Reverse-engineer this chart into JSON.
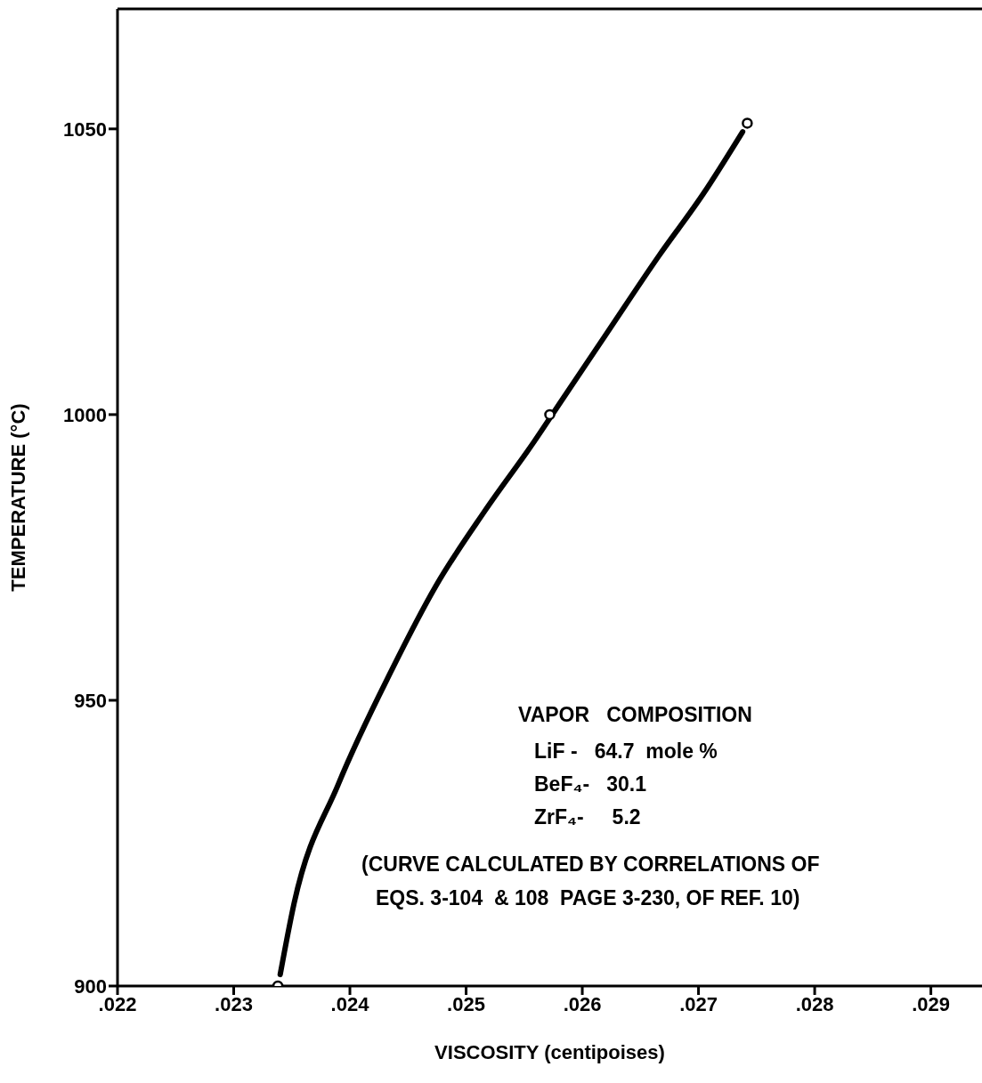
{
  "chart_data": {
    "type": "line",
    "xlabel": "VISCOSITY  (centipoises)",
    "ylabel": "TEMPERATURE   (°C)",
    "xlim": [
      0.022,
      0.02944
    ],
    "ylim": [
      900,
      1071
    ],
    "xticks": [
      {
        "value": 0.022,
        "label": ".022"
      },
      {
        "value": 0.023,
        "label": ".023"
      },
      {
        "value": 0.024,
        "label": ".024"
      },
      {
        "value": 0.025,
        "label": ".025"
      },
      {
        "value": 0.026,
        "label": ".026"
      },
      {
        "value": 0.027,
        "label": ".027"
      },
      {
        "value": 0.028,
        "label": ".028"
      },
      {
        "value": 0.029,
        "label": ".029"
      }
    ],
    "yticks": [
      900,
      950,
      1000,
      1050
    ],
    "series": [
      {
        "color": "#000000",
        "marker": "none",
        "line_style": "solid",
        "x": [
          0.0234,
          0.02352,
          0.0239,
          0.02436,
          0.02474,
          0.02516,
          0.02559,
          0.02582,
          0.0262,
          0.02666,
          0.02704,
          0.02738
        ],
        "values": [
          902,
          914.5,
          935.3,
          955.3,
          970,
          983.1,
          995.4,
          1002.4,
          1013.9,
          1027.8,
          1038.6,
          1049.5
        ]
      },
      {
        "type": "scatter",
        "color": "#000000",
        "marker": "circle",
        "x": [
          0.02338,
          0.02572,
          0.02742
        ],
        "values": [
          900,
          1000,
          1051
        ]
      }
    ],
    "annotations": [
      "VAPOR   COMPOSITION",
      "LiF -   64.7  mole %",
      "BeF₄-   30.1",
      "ZrF₄-     5.2",
      "(CURVE CALCULATED BY CORRELATIONS OF",
      "EQS. 3-104  & 108  PAGE 3-230, OF REF. 10)"
    ],
    "grid": false
  }
}
